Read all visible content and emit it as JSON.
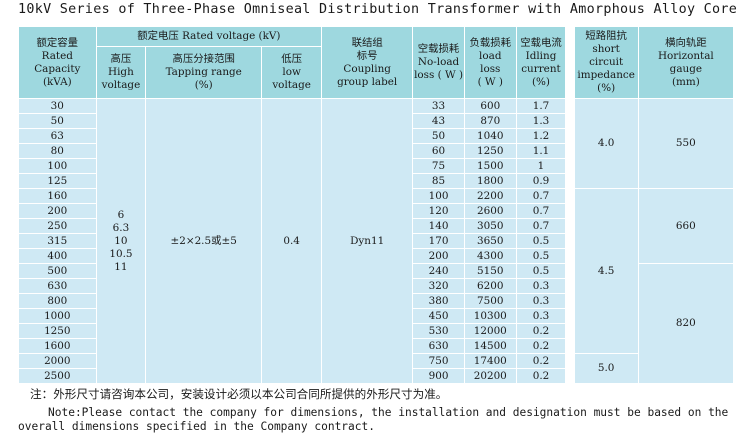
{
  "title": "10kV Series of Three-Phase Omniseal Distribution Transformer with Amorphous Alloy Core",
  "headers": {
    "capacity": "额定容量\nRated\nCapacity\n(kVA)",
    "rated_voltage": "额定电压 Rated voltage (kV)",
    "high_voltage": "高压\nHigh\nvoltage",
    "tapping_range": "高压分接范围\nTapping range\n(%)",
    "low_voltage": "低压\nlow\nvoltage",
    "coupling": "联结组\n标号\nCoupling\ngroup label",
    "no_load_loss": "空载损耗\nNo-load\nloss ( W )",
    "load_loss": "负载损耗\nload\nloss\n( W )",
    "idling_current": "空载电流\nIdling\ncurrent\n(%)",
    "impedance": "短路阻抗\nshort\ncircuit\nimpedance\n(%)",
    "gauge": "横向轨距\nHorizontal\ngauge\n(mm)"
  },
  "merged": {
    "high_voltage": "6\n6.3\n10\n10.5\n11",
    "tapping_range": "±2×2.5或±5",
    "low_voltage": "0.4",
    "coupling": "Dyn11",
    "impedance": [
      "4.0",
      "4.5",
      "5.0"
    ],
    "gauge": [
      "550",
      "660",
      "820"
    ]
  },
  "rows": [
    {
      "capacity": "30",
      "no_load": "33",
      "load": "600",
      "current": "1.7"
    },
    {
      "capacity": "50",
      "no_load": "43",
      "load": "870",
      "current": "1.3"
    },
    {
      "capacity": "63",
      "no_load": "50",
      "load": "1040",
      "current": "1.2"
    },
    {
      "capacity": "80",
      "no_load": "60",
      "load": "1250",
      "current": "1.1"
    },
    {
      "capacity": "100",
      "no_load": "75",
      "load": "1500",
      "current": "1"
    },
    {
      "capacity": "125",
      "no_load": "85",
      "load": "1800",
      "current": "0.9"
    },
    {
      "capacity": "160",
      "no_load": "100",
      "load": "2200",
      "current": "0.7"
    },
    {
      "capacity": "200",
      "no_load": "120",
      "load": "2600",
      "current": "0.7"
    },
    {
      "capacity": "250",
      "no_load": "140",
      "load": "3050",
      "current": "0.7"
    },
    {
      "capacity": "315",
      "no_load": "170",
      "load": "3650",
      "current": "0.5"
    },
    {
      "capacity": "400",
      "no_load": "200",
      "load": "4300",
      "current": "0.5"
    },
    {
      "capacity": "500",
      "no_load": "240",
      "load": "5150",
      "current": "0.5"
    },
    {
      "capacity": "630",
      "no_load": "320",
      "load": "6200",
      "current": "0.3"
    },
    {
      "capacity": "800",
      "no_load": "380",
      "load": "7500",
      "current": "0.3"
    },
    {
      "capacity": "1000",
      "no_load": "450",
      "load": "10300",
      "current": "0.3"
    },
    {
      "capacity": "1250",
      "no_load": "530",
      "load": "12000",
      "current": "0.2"
    },
    {
      "capacity": "1600",
      "no_load": "630",
      "load": "14500",
      "current": "0.2"
    },
    {
      "capacity": "2000",
      "no_load": "750",
      "load": "17400",
      "current": "0.2"
    },
    {
      "capacity": "2500",
      "no_load": "900",
      "load": "20200",
      "current": "0.2"
    }
  ],
  "notes": {
    "cn": "注：外形尺寸请咨询本公司，安装设计必须以本公司合同所提供的外形尺寸为准。",
    "en_line1": "Note:Please contact the company for dimensions, the installation and designation must be based on the",
    "en_line2": "overall dimensions specified in the Company contract."
  }
}
